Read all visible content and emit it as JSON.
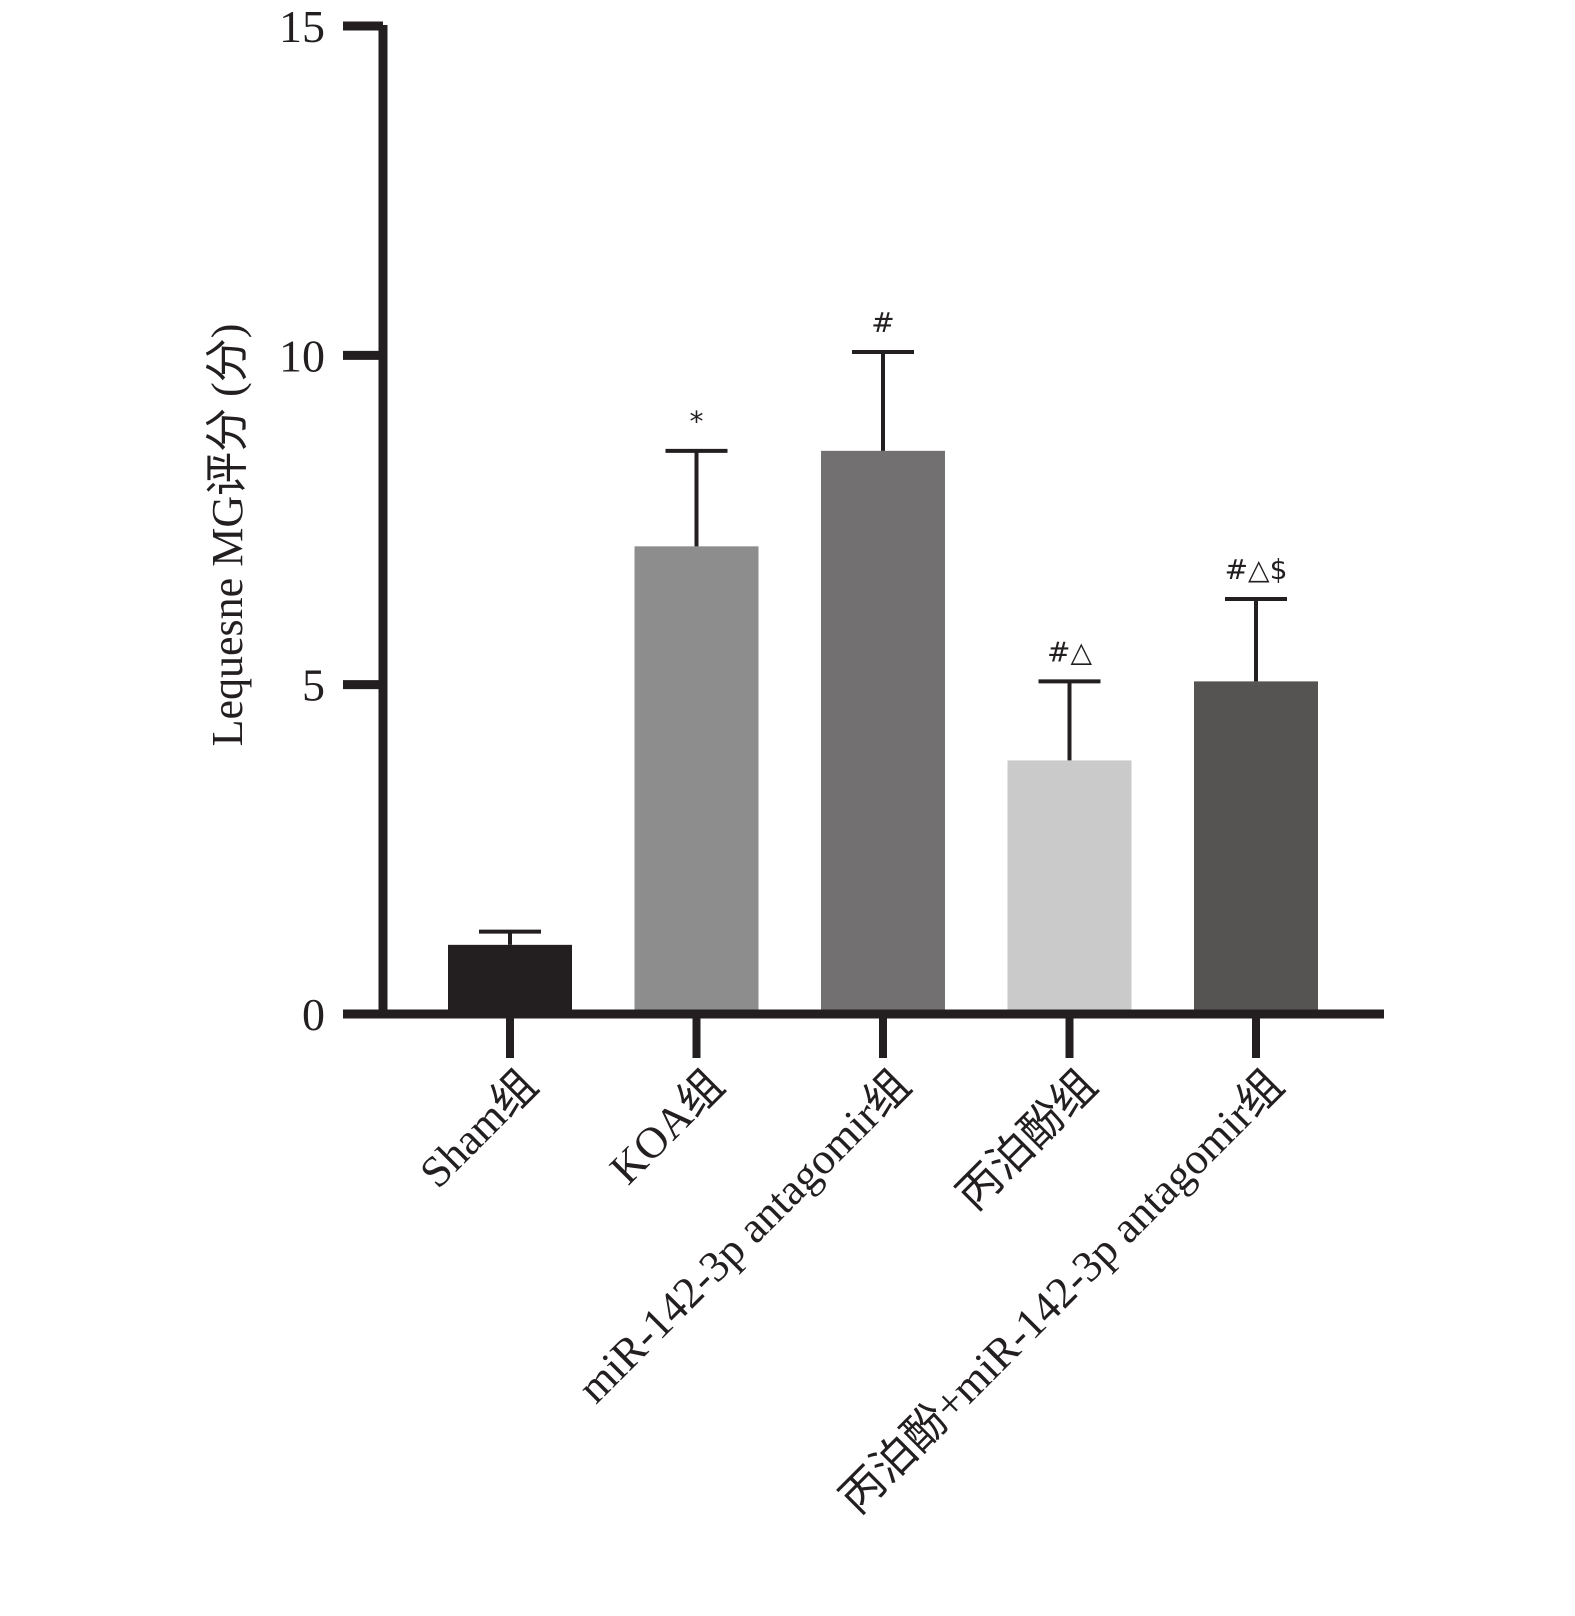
{
  "chart_data": {
    "type": "bar",
    "title": "",
    "xlabel": "",
    "ylabel": "Lequesne MG评分 (分)",
    "ylim": [
      0,
      15
    ],
    "yticks": [
      0,
      5,
      10,
      15
    ],
    "grid": false,
    "categories": [
      "Sham组",
      "KOA组",
      "miR-142-3p antagomir组",
      "丙泊酚组",
      "丙泊酚+miR-142-3p antagomir组"
    ],
    "values": [
      1.05,
      7.1,
      8.55,
      3.85,
      5.05
    ],
    "errors": [
      0.2,
      1.45,
      1.5,
      1.2,
      1.25
    ],
    "significance": [
      "",
      "*",
      "#",
      "#△",
      "#△$"
    ],
    "colors": [
      "#231f20",
      "#8e8d8e",
      "#727071",
      "#cacaca",
      "#555452"
    ]
  }
}
